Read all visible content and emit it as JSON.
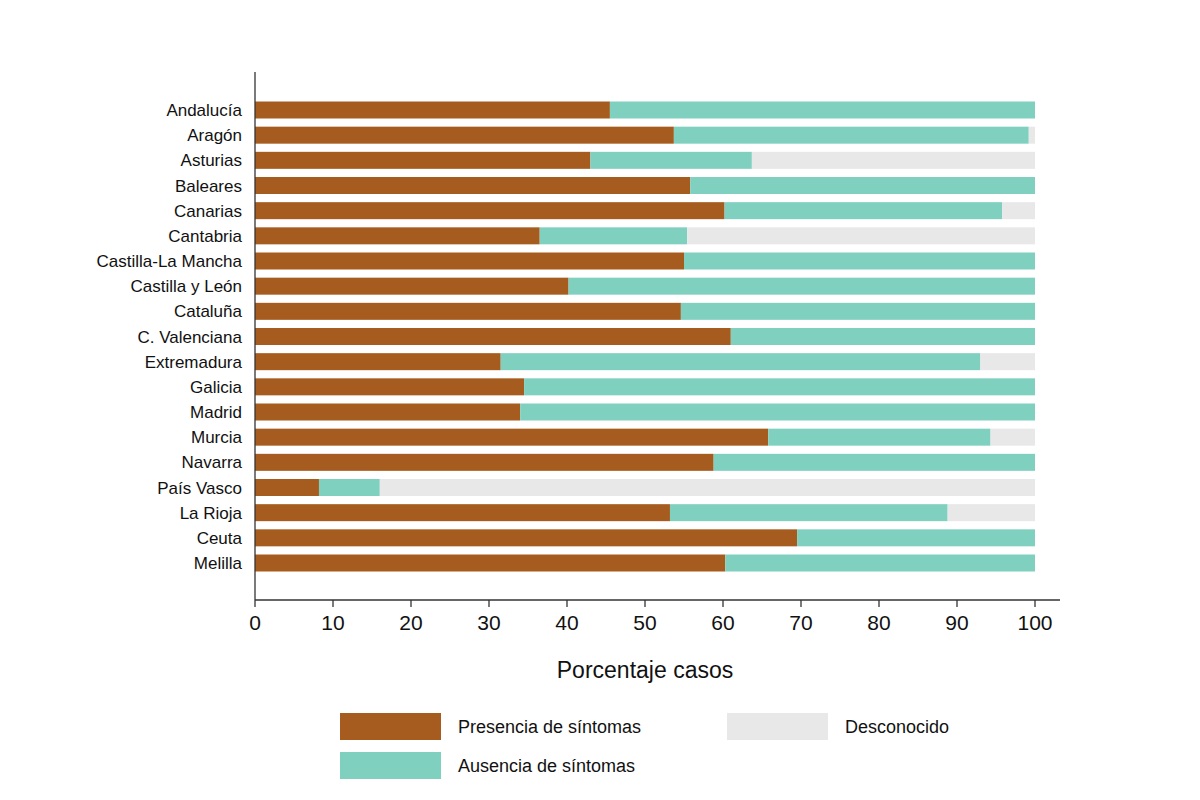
{
  "chart_data": {
    "type": "bar",
    "orientation": "horizontal",
    "stacked": true,
    "grid": false,
    "legend": "bottom",
    "x_label": "Porcentaje casos",
    "xlim": [
      0,
      100
    ],
    "xticks": [
      0,
      10,
      20,
      30,
      40,
      50,
      60,
      70,
      80,
      90,
      100
    ],
    "categories": [
      "Andalucía",
      "Aragón",
      "Asturias",
      "Baleares",
      "Canarias",
      "Cantabria",
      "Castilla-La Mancha",
      "Castilla y León",
      "Cataluña",
      "C. Valenciana",
      "Extremadura",
      "Galicia",
      "Madrid",
      "Murcia",
      "Navarra",
      "País Vasco",
      "La Rioja",
      "Ceuta",
      "Melilla"
    ],
    "series": [
      {
        "name": "Presencia de síntomas",
        "color": "#a65c1e",
        "values": [
          45.5,
          53.7,
          43,
          55.8,
          60.2,
          36.5,
          55,
          40.2,
          54.6,
          61,
          31.5,
          34.5,
          34,
          65.8,
          58.8,
          8.2,
          53.2,
          69.5,
          60.3
        ]
      },
      {
        "name": "Ausencia de síntomas",
        "color": "#80d0c0",
        "values": [
          54.5,
          45.5,
          20.7,
          44.2,
          35.6,
          18.9,
          45,
          59.8,
          45.4,
          39,
          61.5,
          65.5,
          66,
          28.5,
          41.2,
          7.8,
          35.6,
          30.5,
          39.7
        ]
      },
      {
        "name": "Desconocido",
        "color": "#e8e8e8",
        "values": [
          0,
          0.8,
          36.3,
          0,
          4.2,
          44.6,
          0,
          0,
          0,
          0,
          7,
          0,
          0,
          5.7,
          0,
          84,
          11.2,
          0,
          0
        ]
      }
    ]
  }
}
